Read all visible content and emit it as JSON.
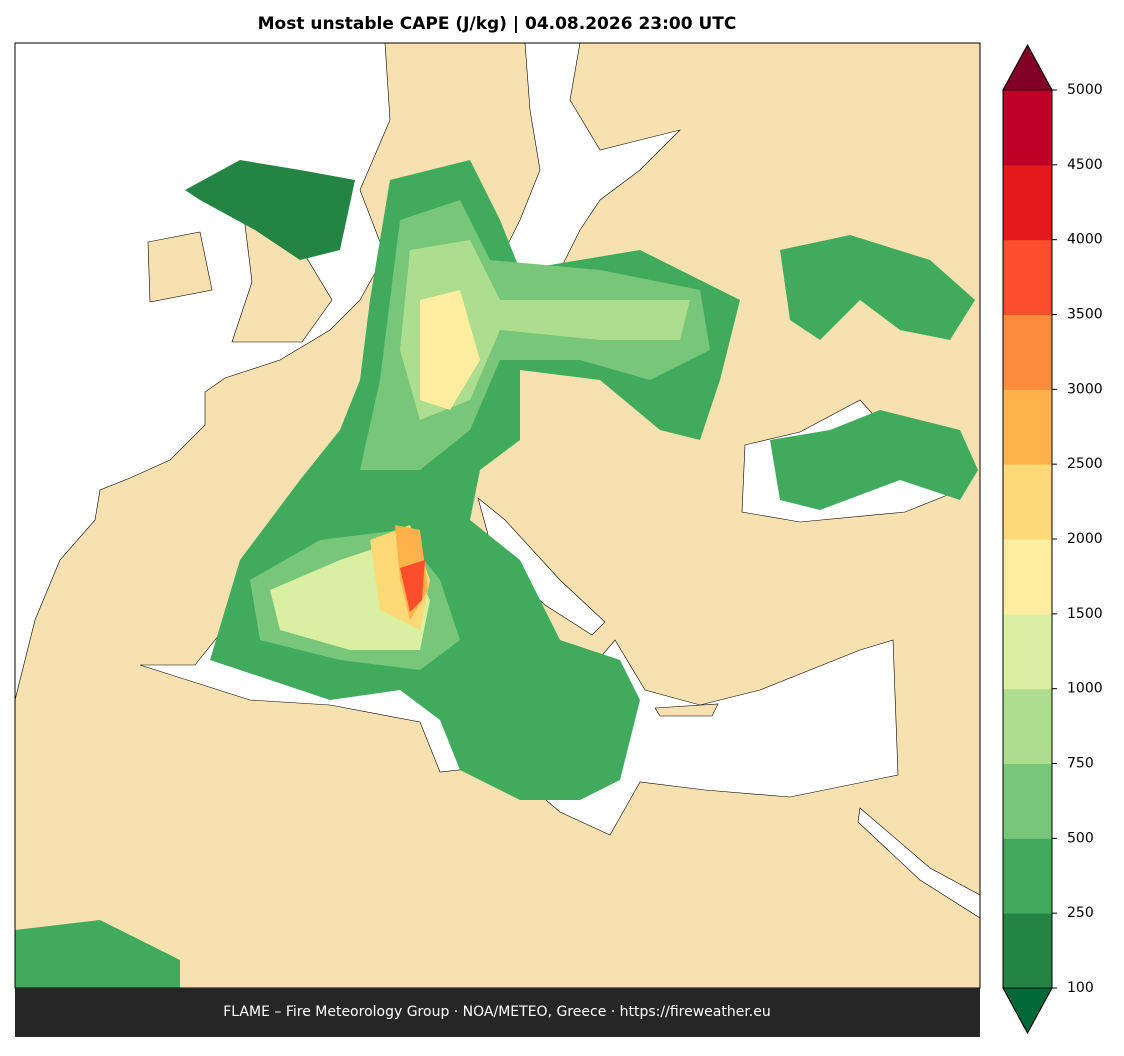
{
  "title": "Most unstable CAPE (J/kg)  |  04.08.2026 23:00 UTC",
  "footer": "FLAME – Fire Meteorology Group · NOA/METEO, Greece · https://fireweather.eu",
  "colorbar": {
    "ticks": [
      100,
      250,
      500,
      750,
      1000,
      1500,
      2000,
      2500,
      3000,
      3500,
      4000,
      4500,
      5000
    ],
    "colors": [
      "#238443",
      "#41ab5d",
      "#78c679",
      "#addd8e",
      "#d9f0a3",
      "#ffeda0",
      "#fed976",
      "#feb24c",
      "#fd8d3c",
      "#fc4e2a",
      "#e31a1c",
      "#bd0026"
    ],
    "under_color": "#006837",
    "over_color": "#800026"
  }
}
